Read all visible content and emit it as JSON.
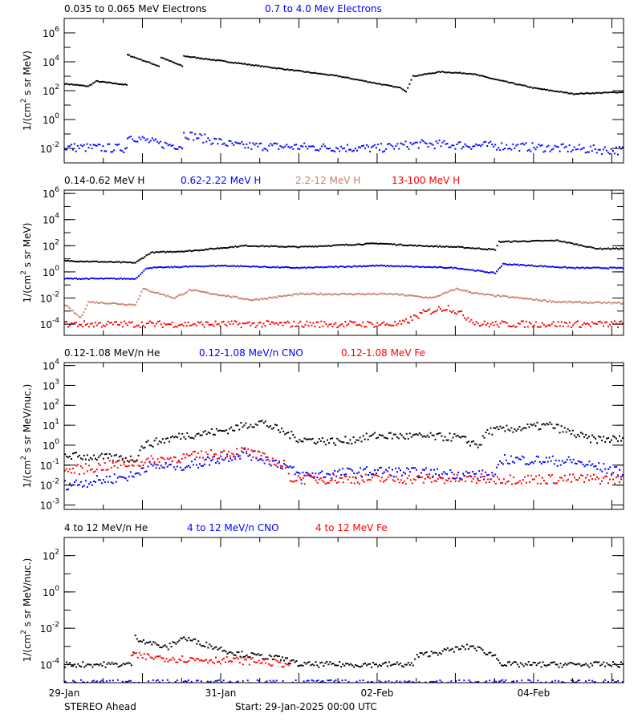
{
  "chart_data": [
    {
      "type": "scatter",
      "yscale": "log",
      "ylim": [
        0.001,
        10000000
      ],
      "ylabel": {
        "pre": "1/(cm",
        "sup": "2",
        "post": " s sr MeV)"
      },
      "yticks": [
        {
          "base": "10",
          "exp": "6",
          "v": 1000000.0
        },
        {
          "base": "10",
          "exp": "4",
          "v": 10000.0
        },
        {
          "base": "10",
          "exp": "2",
          "v": 100.0
        },
        {
          "base": "10",
          "exp": "0",
          "v": 1
        },
        {
          "base": "10",
          "exp": "-2",
          "v": 0.01
        }
      ],
      "series": [
        {
          "name": "0.035 to 0.065 MeV Electrons",
          "color": "#000000",
          "spread": 0.03,
          "points": [
            [
              0,
              300
            ],
            [
              0.3,
              200
            ],
            [
              0.4,
              450
            ],
            [
              0.79,
              250
            ],
            [
              0.8,
              30000
            ],
            [
              1.2,
              5000
            ],
            [
              1.23,
              20000
            ],
            [
              1.5,
              5000
            ],
            [
              1.52,
              25000
            ],
            [
              2.5,
              5000
            ],
            [
              3.5,
              1000
            ],
            [
              4.3,
              150
            ],
            [
              4.36,
              90
            ],
            [
              4.45,
              1000
            ],
            [
              4.8,
              2000
            ],
            [
              5.2,
              1500
            ],
            [
              5.5,
              600
            ],
            [
              6.0,
              150
            ],
            [
              6.5,
              60
            ],
            [
              7.15,
              80
            ]
          ]
        },
        {
          "name": "0.7 to 4.0 Mev Electrons",
          "color": "#0000ff",
          "spread": 0.3,
          "points": [
            [
              0,
              0.012
            ],
            [
              0.79,
              0.01
            ],
            [
              0.8,
              0.08
            ],
            [
              1.2,
              0.02
            ],
            [
              1.5,
              0.015
            ],
            [
              1.52,
              0.1
            ],
            [
              2.2,
              0.015
            ],
            [
              4.0,
              0.01
            ],
            [
              4.5,
              0.02
            ],
            [
              5.5,
              0.015
            ],
            [
              7.15,
              0.007
            ]
          ]
        }
      ]
    },
    {
      "type": "scatter",
      "yscale": "log",
      "ylim": [
        1.4e-05,
        1800000
      ],
      "ylabel": {
        "pre": "1/(cm",
        "sup": "2",
        "post": " s sr MeV)"
      },
      "yticks": [
        {
          "base": "10",
          "exp": "6",
          "v": 1000000.0
        },
        {
          "base": "10",
          "exp": "4",
          "v": 10000.0
        },
        {
          "base": "10",
          "exp": "2",
          "v": 100.0
        },
        {
          "base": "10",
          "exp": "0",
          "v": 1
        },
        {
          "base": "10",
          "exp": "-2",
          "v": 0.01
        },
        {
          "base": "10",
          "exp": "-4",
          "v": 0.0001
        }
      ],
      "series": [
        {
          "name": "0.14-0.62 MeV H",
          "color": "#000000",
          "spread": 0.04,
          "points": [
            [
              0,
              7
            ],
            [
              0.9,
              5
            ],
            [
              1.1,
              30
            ],
            [
              1.6,
              40
            ],
            [
              2.3,
              100
            ],
            [
              3.0,
              80
            ],
            [
              4.0,
              150
            ],
            [
              4.5,
              100
            ],
            [
              5.0,
              80
            ],
            [
              5.5,
              50
            ],
            [
              5.55,
              200
            ],
            [
              6.3,
              250
            ],
            [
              6.8,
              60
            ],
            [
              7.15,
              60
            ]
          ]
        },
        {
          "name": "0.62-2.22 MeV H",
          "color": "#0000ff",
          "spread": 0.04,
          "points": [
            [
              0,
              0.3
            ],
            [
              0.9,
              0.3
            ],
            [
              1.05,
              2
            ],
            [
              2.0,
              3
            ],
            [
              3.0,
              2
            ],
            [
              4.0,
              3
            ],
            [
              5.0,
              2
            ],
            [
              5.5,
              0.8
            ],
            [
              5.6,
              4
            ],
            [
              6.5,
              2
            ],
            [
              7.15,
              2
            ]
          ]
        },
        {
          "name": "2.2-12 MeV H",
          "color": "#c8806a",
          "spread": 0.06,
          "points": [
            [
              0,
              0.003
            ],
            [
              0.2,
              0.0003
            ],
            [
              0.3,
              0.005
            ],
            [
              0.9,
              0.003
            ],
            [
              1.0,
              0.05
            ],
            [
              1.4,
              0.01
            ],
            [
              1.6,
              0.04
            ],
            [
              2.4,
              0.007
            ],
            [
              3.0,
              0.02
            ],
            [
              4.2,
              0.02
            ],
            [
              4.7,
              0.01
            ],
            [
              5.0,
              0.05
            ],
            [
              5.3,
              0.02
            ],
            [
              5.8,
              0.01
            ],
            [
              6.3,
              0.005
            ],
            [
              7.15,
              0.004
            ]
          ]
        },
        {
          "name": "13-100 MeV H",
          "color": "#ff0000",
          "spread": 0.25,
          "points": [
            [
              0,
              0.0001
            ],
            [
              4.3,
              0.0001
            ],
            [
              4.6,
              0.0008
            ],
            [
              4.9,
              0.002
            ],
            [
              5.3,
              0.0001
            ],
            [
              7.15,
              0.0001
            ]
          ]
        }
      ]
    },
    {
      "type": "scatter",
      "yscale": "log",
      "ylim": [
        0.0006,
        14000
      ],
      "ylabel": {
        "pre": "1/(cm",
        "sup": "2",
        "post": " s sr MeV/nuc.)"
      },
      "yticks": [
        {
          "base": "10",
          "exp": "4",
          "v": 10000.0
        },
        {
          "base": "10",
          "exp": "3",
          "v": 1000.0
        },
        {
          "base": "10",
          "exp": "2",
          "v": 100.0
        },
        {
          "base": "10",
          "exp": "1",
          "v": 10.0
        },
        {
          "base": "10",
          "exp": "0",
          "v": 1
        },
        {
          "base": "10",
          "exp": "-1",
          "v": 0.1
        },
        {
          "base": "10",
          "exp": "-2",
          "v": 0.01
        },
        {
          "base": "10",
          "exp": "-3",
          "v": 0.001
        }
      ],
      "series": [
        {
          "name": "0.12-1.08 MeV/n He",
          "color": "#000000",
          "spread": 0.2,
          "points": [
            [
              0,
              0.3
            ],
            [
              0.9,
              0.2
            ],
            [
              1.0,
              1
            ],
            [
              1.5,
              3
            ],
            [
              2.0,
              5
            ],
            [
              2.5,
              15
            ],
            [
              3.0,
              2
            ],
            [
              3.5,
              1.5
            ],
            [
              4.0,
              3
            ],
            [
              5.0,
              2.5
            ],
            [
              5.3,
              1
            ],
            [
              5.4,
              5
            ],
            [
              6.2,
              10
            ],
            [
              6.7,
              2
            ],
            [
              7.15,
              2
            ]
          ]
        },
        {
          "name": "0.12-1.08 MeV/n CNO",
          "color": "#0000ff",
          "spread": 0.25,
          "points": [
            [
              0,
              0.01
            ],
            [
              0.9,
              0.03
            ],
            [
              1.0,
              0.08
            ],
            [
              1.6,
              0.1
            ],
            [
              2.3,
              0.4
            ],
            [
              2.8,
              0.1
            ],
            [
              3.0,
              0.03
            ],
            [
              4.0,
              0.05
            ],
            [
              5.5,
              0.03
            ],
            [
              5.6,
              0.2
            ],
            [
              6.5,
              0.15
            ],
            [
              7.15,
              0.04
            ]
          ]
        },
        {
          "name": "0.12-1.08 MeV Fe",
          "color": "#ff0000",
          "spread": 0.25,
          "points": [
            [
              0,
              0.05
            ],
            [
              1.0,
              0.15
            ],
            [
              2.3,
              0.5
            ],
            [
              2.8,
              0.1
            ],
            [
              2.9,
              0.02
            ],
            [
              7.15,
              0.02
            ]
          ]
        }
      ]
    },
    {
      "type": "scatter",
      "yscale": "log",
      "ylim": [
        1e-05,
        1000
      ],
      "ylabel": {
        "pre": "1/(cm",
        "sup": "2",
        "post": " s sr MeV/nuc.)"
      },
      "yticks": [
        {
          "base": "10",
          "exp": "2",
          "v": 100.0
        },
        {
          "base": "10",
          "exp": "0",
          "v": 1
        },
        {
          "base": "10",
          "exp": "-2",
          "v": 0.01
        },
        {
          "base": "10",
          "exp": "-4",
          "v": 0.0001
        }
      ],
      "series": [
        {
          "name": "4 to 12 MeV/n He",
          "color": "#000000",
          "spread": 0.15,
          "points": [
            [
              0,
              0.0001
            ],
            [
              0.85,
              0.0001
            ],
            [
              0.9,
              0.003
            ],
            [
              1.3,
              0.0008
            ],
            [
              1.5,
              0.003
            ],
            [
              2.2,
              0.0004
            ],
            [
              2.8,
              0.0002
            ],
            [
              3.0,
              0.0001
            ],
            [
              4.45,
              0.0001
            ],
            [
              4.5,
              0.0003
            ],
            [
              5.2,
              0.001
            ],
            [
              5.5,
              0.0003
            ],
            [
              5.6,
              0.0001
            ],
            [
              7.15,
              0.0001
            ]
          ]
        },
        {
          "name": "4 to 12 MeV/n CNO",
          "color": "#0000ff",
          "spread": 0.15,
          "points": [
            [
              0,
              1e-05
            ],
            [
              7.15,
              1e-05
            ]
          ]
        },
        {
          "name": "4 to 12 MeV Fe",
          "color": "#ff0000",
          "spread": 0.2,
          "points": [
            [
              0.85,
              0.0003
            ],
            [
              1.5,
              0.0002
            ],
            [
              2.5,
              0.00015
            ],
            [
              2.9,
              0.0001
            ]
          ]
        }
      ]
    }
  ],
  "xaxis": {
    "range_days": [
      0,
      7.15
    ],
    "ticks": [
      {
        "label": "29-Jan",
        "day": 0
      },
      {
        "label": "31-Jan",
        "day": 2
      },
      {
        "label": "02-Feb",
        "day": 4
      },
      {
        "label": "04-Feb",
        "day": 6
      }
    ]
  },
  "footer": {
    "spacecraft": "STEREO Ahead",
    "start": "Start: 29-Jan-2025 00:00 UTC"
  }
}
